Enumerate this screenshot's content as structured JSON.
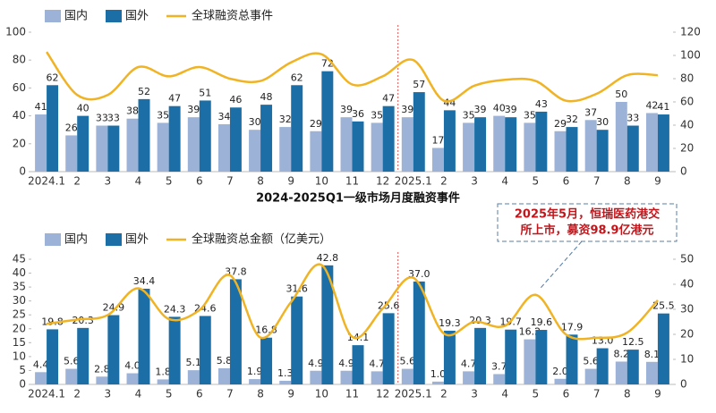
{
  "chart_data": [
    {
      "type": "bar",
      "title": "2024-2025Q1一级市场月度融资事件",
      "categories": [
        "2024.1",
        "2",
        "3",
        "4",
        "5",
        "6",
        "7",
        "8",
        "9",
        "10",
        "11",
        "12",
        "2025.1",
        "2",
        "3",
        "4",
        "5",
        "6",
        "7",
        "8",
        "9"
      ],
      "series": [
        {
          "name": "国内",
          "color": "#9cb2d6",
          "values": [
            41,
            26,
            33,
            38,
            35,
            39,
            34,
            30,
            32,
            29,
            39,
            35,
            39,
            17,
            35,
            40,
            35,
            29,
            37,
            50,
            42
          ]
        },
        {
          "name": "国外",
          "color": "#1c6fa6",
          "values": [
            62,
            40,
            33,
            52,
            47,
            51,
            46,
            48,
            62,
            72,
            36,
            47,
            57,
            44,
            39,
            39,
            43,
            32,
            30,
            33,
            41
          ]
        },
        {
          "name": "全球融资总事件",
          "type": "line",
          "axis": "y2",
          "color": "#f0b323",
          "values": [
            103,
            66,
            66,
            90,
            82,
            90,
            80,
            78,
            94,
            101,
            75,
            82,
            96,
            61,
            74,
            79,
            78,
            61,
            67,
            83,
            83
          ]
        }
      ],
      "ylim": [
        0,
        100
      ],
      "yticks": [
        0,
        20,
        40,
        60,
        80,
        100
      ],
      "y2lim": [
        0,
        120
      ],
      "y2ticks": [
        0,
        20,
        40,
        60,
        80,
        100,
        120
      ]
    },
    {
      "type": "bar",
      "categories": [
        "2024.1",
        "2",
        "3",
        "4",
        "5",
        "6",
        "7",
        "8",
        "9",
        "10",
        "11",
        "12",
        "2025.1",
        "2",
        "3",
        "4",
        "5",
        "6",
        "7",
        "8",
        "9"
      ],
      "series": [
        {
          "name": "国内",
          "color": "#9cb2d6",
          "values": [
            4.4,
            5.6,
            2.8,
            4,
            1.8,
            5.1,
            5.8,
            1.9,
            1.3,
            4.9,
            4.9,
            4.7,
            5.6,
            1,
            4.7,
            3.7,
            16.2,
            2,
            5.6,
            8.2,
            8.1
          ],
          "value_labels": [
            "4.4",
            "5.6",
            "2.8",
            "4.0",
            "1.8",
            "5.1",
            "5.8",
            "1.9",
            "1.3",
            "4.9",
            "4.9",
            "4.7",
            "5.6",
            "1.0",
            "4.7",
            "3.7",
            "16.2",
            "2.0",
            "5.6",
            "8.2",
            "8.1"
          ]
        },
        {
          "name": "国外",
          "color": "#1c6fa6",
          "values": [
            19.8,
            20.3,
            24.9,
            34.4,
            24.3,
            24.6,
            37.8,
            16.8,
            31.6,
            42.8,
            14.1,
            25.6,
            37,
            19.3,
            20.3,
            19.7,
            19.6,
            17.9,
            13,
            12.5,
            25.5
          ],
          "value_labels": [
            "19.8",
            "20.3",
            "24.9",
            "34.4",
            "24.3",
            "24.6",
            "37.8",
            "16.8",
            "31.6",
            "42.8",
            "14.1",
            "25.6",
            "37.0",
            "19.3",
            "20.3",
            "19.7",
            "19.6",
            "17.9",
            "13.0",
            "12.5",
            "25.5"
          ]
        },
        {
          "name": "全球融资总金额（亿美元）",
          "type": "line",
          "axis": "y2",
          "color": "#f0b323",
          "values": [
            24.2,
            25.9,
            27.7,
            38.4,
            26.1,
            29.7,
            43.6,
            18.7,
            32.9,
            47.7,
            19,
            30.3,
            42.6,
            20.3,
            25,
            23.4,
            35.8,
            19.9,
            18.6,
            20.7,
            33.6
          ]
        }
      ],
      "ylim": [
        0,
        45
      ],
      "yticks": [
        0,
        5,
        10,
        15,
        20,
        25,
        30,
        35,
        40,
        45
      ],
      "y2lim": [
        0,
        50
      ],
      "y2ticks": [
        0,
        10,
        20,
        30,
        40,
        50
      ],
      "annotation": [
        "2025年5月，恒瑞医药港交",
        "所上市，募资98.9亿港元"
      ]
    }
  ]
}
